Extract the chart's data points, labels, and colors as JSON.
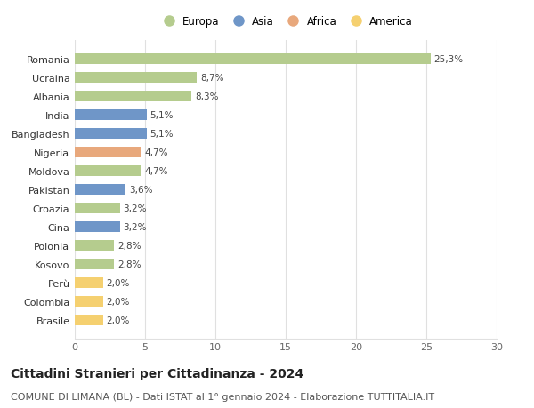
{
  "countries": [
    "Romania",
    "Ucraina",
    "Albania",
    "India",
    "Bangladesh",
    "Nigeria",
    "Moldova",
    "Pakistan",
    "Croazia",
    "Cina",
    "Polonia",
    "Kosovo",
    "Perù",
    "Colombia",
    "Brasile"
  ],
  "values": [
    25.3,
    8.7,
    8.3,
    5.1,
    5.1,
    4.7,
    4.7,
    3.6,
    3.2,
    3.2,
    2.8,
    2.8,
    2.0,
    2.0,
    2.0
  ],
  "labels": [
    "25,3%",
    "8,7%",
    "8,3%",
    "5,1%",
    "5,1%",
    "4,7%",
    "4,7%",
    "3,6%",
    "3,2%",
    "3,2%",
    "2,8%",
    "2,8%",
    "2,0%",
    "2,0%",
    "2,0%"
  ],
  "continents": [
    "Europa",
    "Europa",
    "Europa",
    "Asia",
    "Asia",
    "Africa",
    "Europa",
    "Asia",
    "Europa",
    "Asia",
    "Europa",
    "Europa",
    "America",
    "America",
    "America"
  ],
  "colors": {
    "Europa": "#b5cc8e",
    "Asia": "#6f96c8",
    "Africa": "#e8a87c",
    "America": "#f5d070"
  },
  "xlim": [
    0,
    30
  ],
  "xticks": [
    0,
    5,
    10,
    15,
    20,
    25,
    30
  ],
  "title": "Cittadini Stranieri per Cittadinanza - 2024",
  "subtitle": "COMUNE DI LIMANA (BL) - Dati ISTAT al 1° gennaio 2024 - Elaborazione TUTTITALIA.IT",
  "background_color": "#ffffff",
  "grid_color": "#e0e0e0",
  "bar_height": 0.55,
  "title_fontsize": 10,
  "subtitle_fontsize": 8,
  "label_fontsize": 7.5,
  "tick_fontsize": 8,
  "legend_fontsize": 8.5,
  "legend_entries": [
    "Europa",
    "Asia",
    "Africa",
    "America"
  ]
}
